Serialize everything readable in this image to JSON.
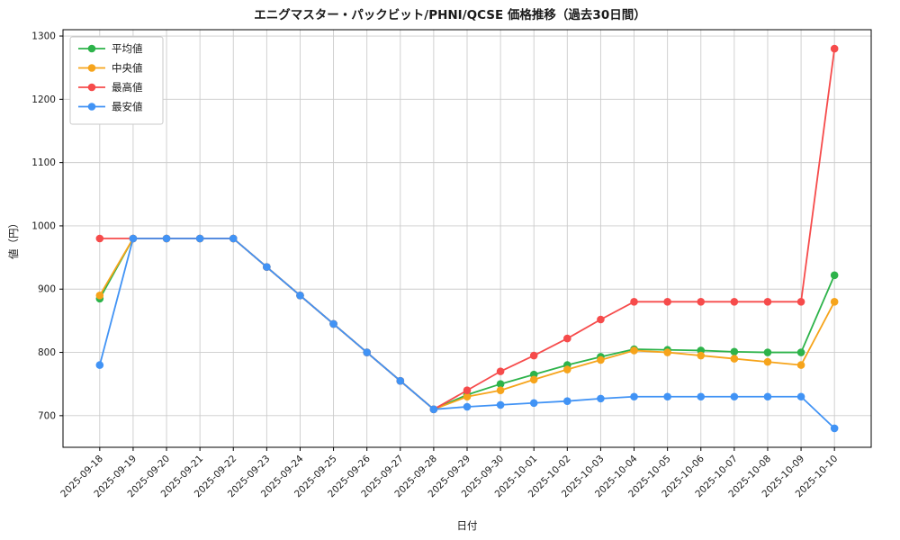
{
  "chart_data": {
    "type": "line",
    "title": "エニグマスター・パックビット/PHNI/QCSE 価格推移（過去30日間）",
    "xlabel": "日付",
    "ylabel": "値（円）",
    "ylim": [
      650,
      1310
    ],
    "yticks": [
      700,
      800,
      900,
      1000,
      1100,
      1200,
      1300
    ],
    "grid": true,
    "legend_position": "upper left",
    "categories": [
      "2025-09-18",
      "2025-09-19",
      "2025-09-20",
      "2025-09-21",
      "2025-09-22",
      "2025-09-23",
      "2025-09-24",
      "2025-09-25",
      "2025-09-26",
      "2025-09-27",
      "2025-09-28",
      "2025-09-29",
      "2025-09-30",
      "2025-10-01",
      "2025-10-02",
      "2025-10-03",
      "2025-10-04",
      "2025-10-05",
      "2025-10-06",
      "2025-10-07",
      "2025-10-08",
      "2025-10-09",
      "2025-10-10"
    ],
    "series": [
      {
        "name": "平均値",
        "key": "average",
        "color": "#2db34a",
        "values": [
          885,
          980,
          980,
          980,
          980,
          935,
          890,
          845,
          800,
          755,
          710,
          733,
          750,
          765,
          780,
          793,
          805,
          804,
          803,
          801,
          800,
          800,
          922
        ]
      },
      {
        "name": "中央値",
        "key": "median",
        "color": "#f6a41b",
        "values": [
          890,
          980,
          980,
          980,
          980,
          935,
          890,
          845,
          800,
          755,
          710,
          730,
          740,
          757,
          773,
          788,
          803,
          800,
          795,
          790,
          785,
          780,
          880
        ]
      },
      {
        "name": "最高値",
        "key": "max",
        "color": "#f64b4b",
        "values": [
          980,
          980,
          980,
          980,
          980,
          935,
          890,
          845,
          800,
          755,
          710,
          740,
          770,
          795,
          822,
          852,
          880,
          880,
          880,
          880,
          880,
          880,
          1280
        ]
      },
      {
        "name": "最安値",
        "key": "min",
        "color": "#4193f5",
        "values": [
          780,
          980,
          980,
          980,
          980,
          935,
          890,
          845,
          800,
          755,
          710,
          714,
          717,
          720,
          723,
          727,
          730,
          730,
          730,
          730,
          730,
          730,
          680
        ]
      }
    ],
    "style": {
      "grid_color": "#cccccc",
      "frame_color": "#000000",
      "background": "#ffffff",
      "legend_border": "#c9c9c9"
    }
  }
}
